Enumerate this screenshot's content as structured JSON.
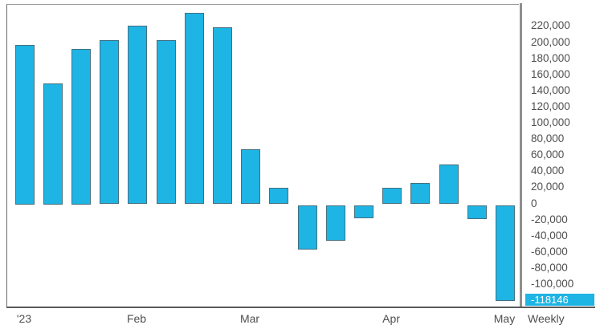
{
  "chart_data": {
    "type": "bar",
    "title": "",
    "timeframe_label": "Weekly",
    "year_start_label": "'23",
    "values": [
      198000,
      150000,
      193000,
      203000,
      221000,
      203000,
      237000,
      219000,
      68000,
      20000,
      -55000,
      -44000,
      -16000,
      20000,
      26000,
      49000,
      -17000,
      -118146
    ],
    "x_ticks": [
      {
        "label": "'23",
        "bar": 1
      },
      {
        "label": "Feb",
        "bar": 5
      },
      {
        "label": "Mar",
        "bar": 9
      },
      {
        "label": "Apr",
        "bar": 14
      },
      {
        "label": "May",
        "bar": 18
      }
    ],
    "y_ticks": [
      220000,
      200000,
      180000,
      160000,
      140000,
      120000,
      100000,
      80000,
      60000,
      40000,
      20000,
      0,
      -20000,
      -40000,
      -60000,
      -80000,
      -100000
    ],
    "ylim": [
      -129000,
      247000
    ],
    "grid": false,
    "legend_position": "none",
    "bar_color": "#1eb4e4",
    "last_value": -118146,
    "last_value_label": "-118146",
    "axis_text_color": "#4f4f4f"
  }
}
